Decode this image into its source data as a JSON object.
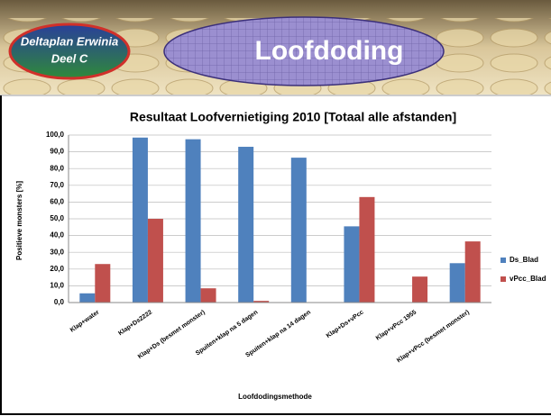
{
  "header": {
    "badge_line1": "Deltaplan Erwinia",
    "badge_line2": "Deel C",
    "title": "Loofdoding"
  },
  "chart_data": {
    "type": "bar",
    "title": "Resultaat Loofvernietiging 2010 [Totaal alle afstanden]",
    "y_label": "Positieve monsters [%]",
    "x_label": "Loofdodingsmethode",
    "categories": [
      "Klap+water",
      "Klap+Ds2222",
      "Klap+Ds (besmet monster)",
      "Spuiten+klap na 5 dagen",
      "Spuiten+klap na 14 dagen",
      "Klap+Ds+vPcc",
      "Klap+vPcc 1955",
      "Klap+vPcc (besmet monster)"
    ],
    "series": [
      {
        "name": "Ds_Blad",
        "color": "#4f81bd",
        "values": [
          5.5,
          98.5,
          97.5,
          93,
          86.5,
          45.5,
          0,
          23.5
        ]
      },
      {
        "name": "vPcc_Blad",
        "color": "#c0504d",
        "values": [
          23,
          50,
          8.5,
          1,
          0,
          63,
          15.5,
          36.5
        ]
      }
    ],
    "ylim": [
      0,
      100
    ],
    "yticks": [
      {
        "value": 0,
        "label": "0,0"
      },
      {
        "value": 10,
        "label": "10,0"
      },
      {
        "value": 20,
        "label": "20,0"
      },
      {
        "value": 30,
        "label": "30,0"
      },
      {
        "value": 40,
        "label": "40,0"
      },
      {
        "value": 50,
        "label": "50,0"
      },
      {
        "value": 60,
        "label": "60,0"
      },
      {
        "value": 70,
        "label": "70,0"
      },
      {
        "value": 80,
        "label": "80,0"
      },
      {
        "value": 90,
        "label": "90,0"
      },
      {
        "value": 100,
        "label": "100,0"
      }
    ],
    "grid": true,
    "legend": "right"
  }
}
